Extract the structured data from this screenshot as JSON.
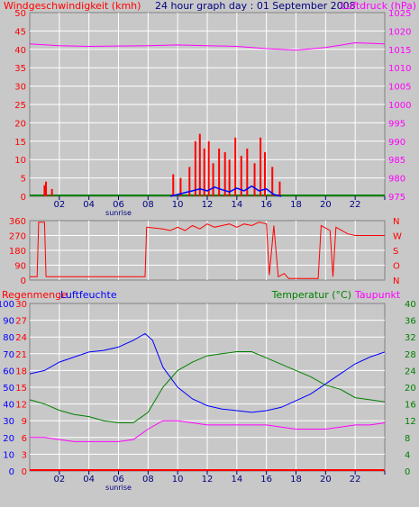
{
  "chart_data": [
    {
      "type": "line",
      "panel": "wind-pressure",
      "title": "24 hour graph day : 01 September 2008",
      "left_axis_label": "Windgeschwindigkeit (kmh)",
      "right_axis_label": "Luftdruck (hPa)",
      "left_ylim": [
        0,
        50
      ],
      "left_ticks": [
        "0",
        "5",
        "10",
        "15",
        "20",
        "25",
        "30",
        "35",
        "40",
        "45",
        "50"
      ],
      "right_ylim": [
        975,
        1025
      ],
      "right_ticks": [
        "975",
        "980",
        "985",
        "990",
        "995",
        "1000",
        "1005",
        "1010",
        "1015",
        "1020",
        "1025"
      ],
      "x_ticks": [
        "02",
        "04",
        "06",
        "08",
        "10",
        "12",
        "14",
        "16",
        "18",
        "20",
        "22",
        ""
      ],
      "sunrise_label": "sunrise",
      "sunrise_hour": 6,
      "colors": {
        "wind": "#ff0000",
        "pressure": "#ff00ff",
        "mean": "#0000ff",
        "base": "#008000"
      },
      "pressure": [
        [
          0,
          1016.5
        ],
        [
          2,
          1016
        ],
        [
          4,
          1015.8
        ],
        [
          6,
          1015.9
        ],
        [
          8,
          1016
        ],
        [
          10,
          1016.2
        ],
        [
          12,
          1016
        ],
        [
          14,
          1015.8
        ],
        [
          16,
          1015.2
        ],
        [
          18,
          1014.8
        ],
        [
          20,
          1015.5
        ],
        [
          22,
          1016.8
        ],
        [
          24,
          1016.5
        ]
      ],
      "gust_spikes": [
        [
          1,
          3
        ],
        [
          1.1,
          4
        ],
        [
          1.5,
          2
        ],
        [
          9.7,
          6
        ],
        [
          10.2,
          5
        ],
        [
          10.8,
          8
        ],
        [
          11.2,
          15
        ],
        [
          11.5,
          17
        ],
        [
          11.8,
          13
        ],
        [
          12.1,
          15
        ],
        [
          12.4,
          9
        ],
        [
          12.8,
          13
        ],
        [
          13.2,
          12
        ],
        [
          13.5,
          10
        ],
        [
          13.9,
          16
        ],
        [
          14.3,
          11
        ],
        [
          14.7,
          13
        ],
        [
          15.2,
          9
        ],
        [
          15.6,
          16
        ],
        [
          15.9,
          12
        ],
        [
          16.4,
          8
        ],
        [
          16.9,
          4
        ]
      ],
      "mean_wind": [
        [
          9.5,
          0
        ],
        [
          10.5,
          1
        ],
        [
          11,
          1.5
        ],
        [
          11.5,
          2
        ],
        [
          12,
          1.5
        ],
        [
          12.5,
          2.5
        ],
        [
          13,
          1.8
        ],
        [
          13.5,
          1.2
        ],
        [
          14,
          2.2
        ],
        [
          14.5,
          1.5
        ],
        [
          15,
          2.8
        ],
        [
          15.5,
          1.5
        ],
        [
          16,
          2
        ],
        [
          16.5,
          0.5
        ],
        [
          17,
          0
        ]
      ]
    },
    {
      "type": "line",
      "panel": "wind-direction",
      "left_ticks": [
        "0",
        "90",
        "180",
        "270",
        "360"
      ],
      "right_ticks": [
        "N",
        "O",
        "S",
        "W",
        "N"
      ],
      "ylim": [
        0,
        360
      ],
      "color": "#ff0000",
      "direction": [
        [
          0,
          20
        ],
        [
          0.5,
          20
        ],
        [
          0.6,
          350
        ],
        [
          1,
          350
        ],
        [
          1.1,
          20
        ],
        [
          7.8,
          20
        ],
        [
          7.9,
          320
        ],
        [
          9,
          310
        ],
        [
          9.5,
          300
        ],
        [
          10,
          320
        ],
        [
          10.5,
          300
        ],
        [
          11,
          330
        ],
        [
          11.5,
          310
        ],
        [
          12,
          340
        ],
        [
          12.5,
          320
        ],
        [
          13,
          330
        ],
        [
          13.5,
          340
        ],
        [
          14,
          320
        ],
        [
          14.5,
          340
        ],
        [
          15,
          330
        ],
        [
          15.5,
          350
        ],
        [
          16,
          340
        ],
        [
          16.2,
          30
        ],
        [
          16.5,
          330
        ],
        [
          16.8,
          20
        ],
        [
          17.2,
          40
        ],
        [
          17.5,
          10
        ],
        [
          19.5,
          10
        ],
        [
          19.7,
          330
        ],
        [
          20.3,
          300
        ],
        [
          20.5,
          20
        ],
        [
          20.7,
          320
        ],
        [
          21.5,
          280
        ],
        [
          22,
          270
        ],
        [
          24,
          270
        ]
      ]
    },
    {
      "type": "line",
      "panel": "humidity-temp",
      "axis_labels": {
        "rain": "Regenmenge",
        "humidity": "Luftfeuchte",
        "temperature": "Temperatur (°C)",
        "dewpoint": "Taupunkt"
      },
      "humidity_ticks": [
        "0",
        "10",
        "20",
        "30",
        "40",
        "50",
        "60",
        "70",
        "80",
        "90",
        "100"
      ],
      "rain_ticks": [
        "0",
        "3",
        "6",
        "9",
        "12",
        "15",
        "18",
        "21",
        "24",
        "27",
        "30"
      ],
      "temp_ticks": [
        "0",
        "4",
        "8",
        "12",
        "16",
        "20",
        "24",
        "28",
        "32",
        "36",
        "40"
      ],
      "humidity_ylim": [
        0,
        100
      ],
      "temp_ylim": [
        0,
        40
      ],
      "x_ticks": [
        "02",
        "04",
        "06",
        "08",
        "10",
        "12",
        "14",
        "16",
        "18",
        "20",
        "22",
        ""
      ],
      "sunrise_label": "sunrise",
      "colors": {
        "humidity": "#0000ff",
        "temperature": "#008000",
        "dewpoint": "#ff00ff",
        "rain": "#ff0000"
      },
      "humidity": [
        [
          0,
          58
        ],
        [
          1,
          60
        ],
        [
          2,
          65
        ],
        [
          3,
          68
        ],
        [
          4,
          71
        ],
        [
          5,
          72
        ],
        [
          6,
          74
        ],
        [
          7,
          78
        ],
        [
          7.8,
          82
        ],
        [
          8.3,
          78
        ],
        [
          9,
          62
        ],
        [
          10,
          50
        ],
        [
          11,
          43
        ],
        [
          12,
          39
        ],
        [
          13,
          37
        ],
        [
          14,
          36
        ],
        [
          15,
          35
        ],
        [
          16,
          36
        ],
        [
          17,
          38
        ],
        [
          18,
          42
        ],
        [
          19,
          46
        ],
        [
          20,
          52
        ],
        [
          21,
          58
        ],
        [
          22,
          64
        ],
        [
          23,
          68
        ],
        [
          24,
          71
        ]
      ],
      "temperature": [
        [
          0,
          17
        ],
        [
          1,
          16
        ],
        [
          2,
          14.5
        ],
        [
          3,
          13.5
        ],
        [
          4,
          13
        ],
        [
          5,
          12
        ],
        [
          6,
          11.5
        ],
        [
          7,
          11.5
        ],
        [
          8,
          14
        ],
        [
          9,
          20
        ],
        [
          10,
          24
        ],
        [
          11,
          26
        ],
        [
          12,
          27.5
        ],
        [
          13,
          28
        ],
        [
          14,
          28.5
        ],
        [
          15,
          28.5
        ],
        [
          16,
          27
        ],
        [
          17,
          25.5
        ],
        [
          18,
          24
        ],
        [
          19,
          22.5
        ],
        [
          20,
          20.5
        ],
        [
          21,
          19.5
        ],
        [
          22,
          17.5
        ],
        [
          23,
          17
        ],
        [
          24,
          16.5
        ]
      ],
      "dewpoint": [
        [
          0,
          8
        ],
        [
          1,
          8
        ],
        [
          2,
          7.5
        ],
        [
          3,
          7
        ],
        [
          4,
          7
        ],
        [
          5,
          7
        ],
        [
          6,
          7
        ],
        [
          7,
          7.5
        ],
        [
          8,
          10
        ],
        [
          9,
          12
        ],
        [
          10,
          12
        ],
        [
          11,
          11.5
        ],
        [
          12,
          11
        ],
        [
          13,
          11
        ],
        [
          14,
          11
        ],
        [
          15,
          11
        ],
        [
          16,
          11
        ],
        [
          17,
          10.5
        ],
        [
          18,
          10
        ],
        [
          19,
          10
        ],
        [
          20,
          10
        ],
        [
          21,
          10.5
        ],
        [
          22,
          11
        ],
        [
          23,
          11
        ],
        [
          24,
          11.5
        ]
      ]
    }
  ]
}
